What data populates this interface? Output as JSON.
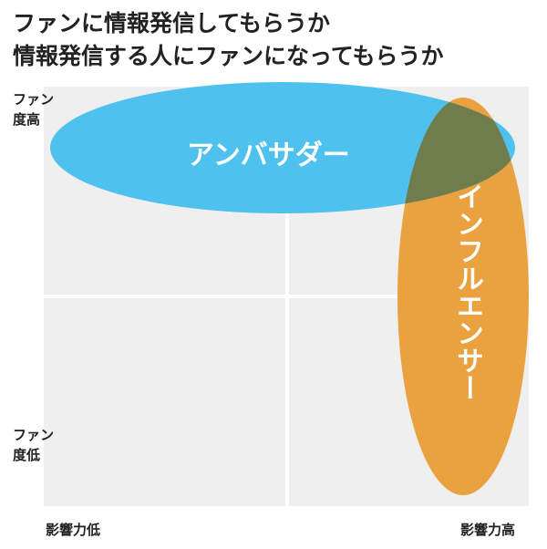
{
  "header": {
    "title_lines": [
      "ファンに情報発信してもらうか",
      "情報発信する人にファンになってもらうか"
    ]
  },
  "axes": {
    "y_high": "ファン度高",
    "y_low": "ファン度低",
    "x_low": "影響力低",
    "x_high": "影響力高"
  },
  "regions": [
    {
      "label": "アンバサダー"
    },
    {
      "label": "インフルエンサー"
    }
  ]
}
